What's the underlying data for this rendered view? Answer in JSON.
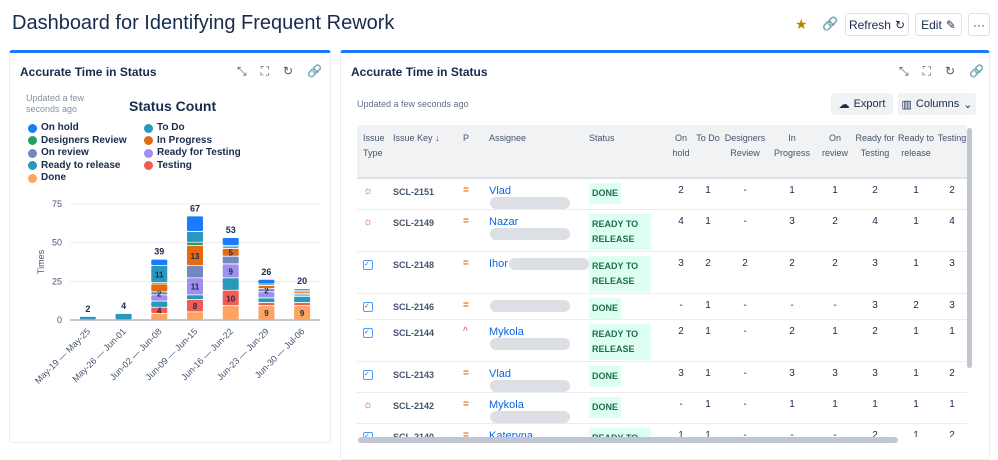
{
  "page": {
    "title": "Dashboard for Identifying Frequent Rework"
  },
  "toolbar": {
    "refresh": "Refresh",
    "edit": "Edit",
    "more": "···"
  },
  "left_panel": {
    "title": "Accurate Time in Status",
    "updated": "Updated a few seconds ago"
  },
  "right_panel": {
    "title": "Accurate Time in Status",
    "updated": "Updated a few seconds ago",
    "export": "Export",
    "columns": "Columns"
  },
  "chart_data": {
    "type": "bar",
    "stacked": true,
    "title": "Status Count",
    "ylabel": "Times",
    "ylim": [
      0,
      75
    ],
    "yticks": [
      0,
      25,
      50,
      75
    ],
    "grid": true,
    "legend_placement": "top",
    "categories": [
      "May-19 — May-25",
      "May-26 — Jun-01",
      "Jun-02 — Jun-08",
      "Jun-09 — Jun-15",
      "Jun-16 — Jun-22",
      "Jun-23 — Jun-29",
      "Jun-30 — Jul-06"
    ],
    "totals": [
      2,
      4,
      39,
      67,
      53,
      26,
      20
    ],
    "series": [
      {
        "name": "Done",
        "color": "#fea362",
        "values": [
          0,
          0,
          4,
          5,
          9,
          9,
          9
        ]
      },
      {
        "name": "Testing",
        "color": "#f15b50",
        "values": [
          0,
          0,
          4,
          8,
          10,
          2,
          2
        ]
      },
      {
        "name": "Ready to release",
        "color": "#2898bd",
        "values": [
          2,
          4,
          4,
          3,
          8,
          3,
          4
        ]
      },
      {
        "name": "Ready for Testing",
        "color": "#9f8fef",
        "values": [
          0,
          0,
          4,
          11,
          9,
          4,
          1
        ]
      },
      {
        "name": "On review",
        "color": "#7189c0",
        "values": [
          0,
          0,
          2,
          8,
          5,
          2,
          1
        ]
      },
      {
        "name": "In Progress",
        "color": "#e56910",
        "values": [
          0,
          0,
          5,
          13,
          5,
          2,
          1
        ]
      },
      {
        "name": "Designers Review",
        "color": "#22a06b",
        "values": [
          0,
          0,
          1,
          2,
          1,
          0,
          0
        ]
      },
      {
        "name": "To Do",
        "color": "#2898bd",
        "values": [
          0,
          0,
          11,
          7,
          1,
          1,
          1
        ]
      },
      {
        "name": "On hold",
        "color": "#1d7afc",
        "values": [
          0,
          0,
          4,
          10,
          5,
          3,
          1
        ]
      }
    ],
    "legend_order": [
      "On hold",
      "Designers Review",
      "On review",
      "Ready to release",
      "Done",
      "To Do",
      "In Progress",
      "Ready for Testing",
      "Testing"
    ],
    "data_labels": [
      [
        2,
        "Testing",
        4
      ],
      [
        2,
        "On review",
        2
      ],
      [
        2,
        "To Do",
        11
      ],
      [
        3,
        "Testing",
        8
      ],
      [
        3,
        "Ready for Testing",
        11
      ],
      [
        3,
        "In Progress",
        13
      ],
      [
        4,
        "Testing",
        10
      ],
      [
        4,
        "Ready for Testing",
        9
      ],
      [
        4,
        "In Progress",
        5
      ],
      [
        5,
        "Done",
        9
      ],
      [
        5,
        "On review",
        2
      ],
      [
        6,
        "Done",
        9
      ]
    ]
  },
  "table": {
    "headers": [
      "Issue Type",
      "Issue Key ↓",
      "P",
      "Assignee",
      "Status",
      "On hold",
      "To Do",
      "Designers Review",
      "In Progress",
      "On review",
      "Ready for Testing",
      "Ready to release",
      "Testing"
    ],
    "rows": [
      {
        "type": "bug",
        "key": "SCL-2151",
        "priority": "medium",
        "assignee": "Vlad",
        "status": "DONE",
        "v": [
          "2",
          "1",
          "-",
          "1",
          "1",
          "2",
          "1",
          "2"
        ]
      },
      {
        "type": "bug",
        "key": "SCL-2149",
        "priority": "medium",
        "assignee": "Nazar",
        "status": "READY TO RELEASE",
        "v": [
          "4",
          "1",
          "-",
          "3",
          "2",
          "4",
          "1",
          "4"
        ]
      },
      {
        "type": "task",
        "key": "SCL-2148",
        "priority": "medium",
        "assignee": "Ihor",
        "status": "READY TO RELEASE",
        "v": [
          "3",
          "2",
          "2",
          "2",
          "2",
          "3",
          "1",
          "3"
        ]
      },
      {
        "type": "task",
        "key": "SCL-2146",
        "priority": "medium",
        "assignee": "",
        "status": "DONE",
        "v": [
          "-",
          "1",
          "-",
          "-",
          "-",
          "3",
          "2",
          "3"
        ]
      },
      {
        "type": "task",
        "key": "SCL-2144",
        "priority": "high",
        "assignee": "Mykola",
        "status": "READY TO RELEASE",
        "v": [
          "2",
          "1",
          "-",
          "2",
          "1",
          "2",
          "1",
          "1"
        ]
      },
      {
        "type": "task",
        "key": "SCL-2143",
        "priority": "medium",
        "assignee": "Vlad",
        "status": "DONE",
        "v": [
          "3",
          "1",
          "-",
          "3",
          "3",
          "3",
          "1",
          "2"
        ]
      },
      {
        "type": "bug",
        "key": "SCL-2142",
        "priority": "medium",
        "assignee": "Mykola",
        "status": "DONE",
        "v": [
          "-",
          "1",
          "-",
          "1",
          "1",
          "1",
          "1",
          "1"
        ]
      },
      {
        "type": "task",
        "key": "SCL-2140",
        "priority": "medium",
        "assignee": "Kateryna",
        "status": "READY TO RELEASE",
        "v": [
          "1",
          "1",
          "-",
          "-",
          "-",
          "2",
          "1",
          "2"
        ]
      }
    ]
  }
}
